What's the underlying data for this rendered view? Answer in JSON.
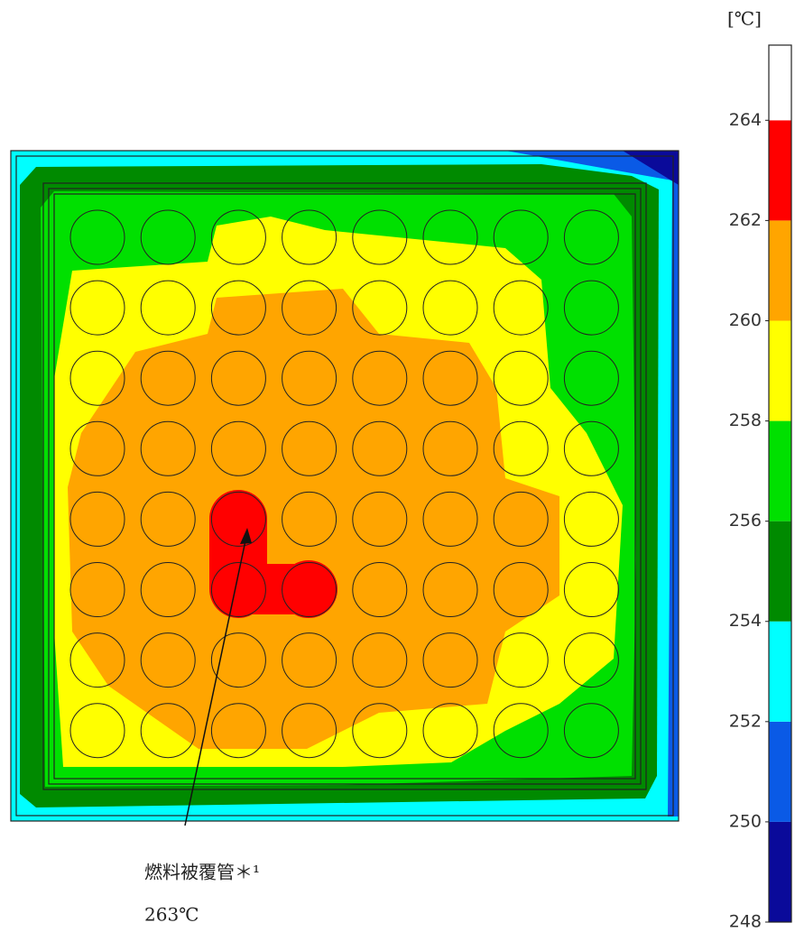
{
  "chart_data": {
    "type": "contour",
    "unit": "[℃]",
    "ylim": [
      248,
      265.5
    ],
    "yticks": [
      248,
      250,
      252,
      254,
      256,
      258,
      260,
      262,
      264
    ],
    "bins": [
      248,
      250,
      252,
      254,
      256,
      258,
      260,
      262,
      264
    ],
    "colors": [
      "#0a0a9a",
      "#0a5ae6",
      "#00ffff",
      "#008a00",
      "#00e000",
      "#ffff00",
      "#ffa500",
      "#ff0000"
    ],
    "above_color": "#ffffff",
    "annotations": [
      "燃料被覆管＊¹",
      "263℃"
    ]
  }
}
